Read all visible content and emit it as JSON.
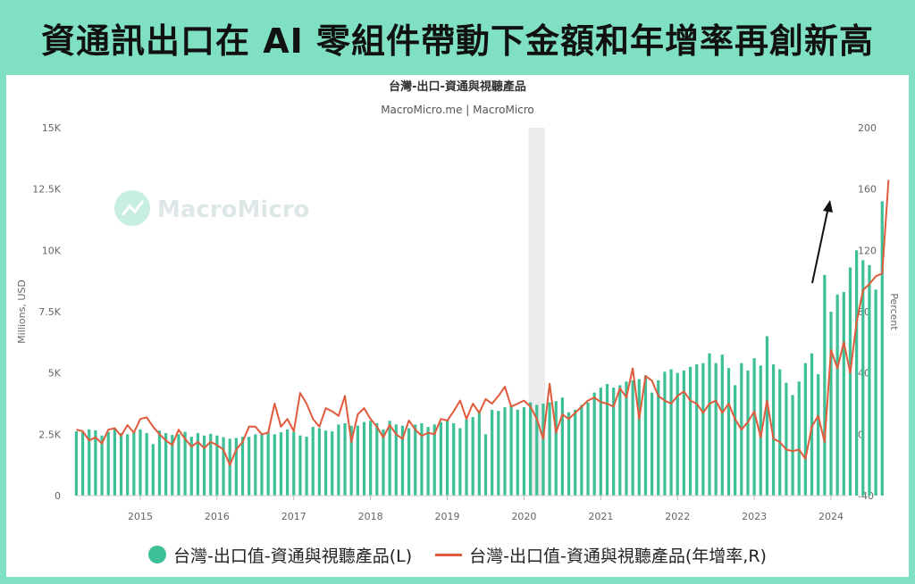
{
  "headline": "資通訊出口在 AI 零組件帶動下金額和年增率再創新高",
  "colors": {
    "background": "#7fe0c3",
    "bar": "#3dbf98",
    "line": "#e05a3c",
    "shade": "#ececec",
    "arrow": "#111111"
  },
  "chart_data": {
    "type": "bar",
    "title": "台灣-出口-資通與視聽產品",
    "subtitle": "MacroMicro.me | MacroMicro",
    "watermark": "MacroMicro",
    "ylabel_left": "Millions, USD",
    "ylabel_right": "Percent",
    "ylim_left": [
      0,
      15000
    ],
    "ylim_right": [
      -40,
      200
    ],
    "yticks_left": [
      "0",
      "2.5K",
      "5K",
      "7.5K",
      "10K",
      "12.5K",
      "15K"
    ],
    "yticks_right": [
      "-40",
      "0",
      "40",
      "80",
      "120",
      "160",
      "200"
    ],
    "xticks": [
      "2015",
      "2016",
      "2017",
      "2018",
      "2019",
      "2020",
      "2021",
      "2022",
      "2023",
      "2024"
    ],
    "start": "2014-03",
    "legend": [
      "台灣-出口值-資通與視聽產品(L)",
      "台灣-出口值-資通與視聽產品(年增率,R)"
    ],
    "series": [
      {
        "name": "台灣-出口值-資通與視聽產品(L)",
        "axis": "left",
        "type": "bar",
        "values": [
          2620,
          2580,
          2700,
          2660,
          2450,
          2600,
          2720,
          2550,
          2500,
          2600,
          2700,
          2550,
          2100,
          2650,
          2550,
          2480,
          2500,
          2600,
          2400,
          2550,
          2450,
          2520,
          2450,
          2380,
          2320,
          2350,
          2400,
          2400,
          2500,
          2520,
          2600,
          2500,
          2580,
          2700,
          2600,
          2450,
          2400,
          2800,
          2750,
          2650,
          2620,
          2900,
          2950,
          2850,
          2850,
          3000,
          3050,
          2950,
          2700,
          3050,
          2900,
          2850,
          2750,
          2900,
          2950,
          2800,
          2900,
          3000,
          3100,
          2950,
          2750,
          3100,
          3200,
          3400,
          2500,
          3500,
          3450,
          3600,
          3700,
          3500,
          3600,
          3800,
          3700,
          3750,
          3800,
          3850,
          4000,
          3400,
          3500,
          3700,
          3800,
          4200,
          4400,
          4550,
          4400,
          4500,
          4650,
          4700,
          4750,
          4900,
          4200,
          4700,
          5050,
          5150,
          5000,
          5100,
          5250,
          5350,
          5400,
          5800,
          5400,
          5750,
          5200,
          4500,
          5400,
          5100,
          5600,
          5300,
          6500,
          5350,
          5150,
          4600,
          4100,
          4650,
          5400,
          5800,
          4950,
          9000,
          7500,
          8200,
          8300,
          9300,
          10000,
          9600,
          9400,
          8400,
          12000
        ]
      },
      {
        "name": "台灣-出口值-資通與視聽產品(年增率,R)",
        "axis": "right",
        "type": "line",
        "values": [
          3,
          2,
          -4,
          -2,
          -6,
          3,
          4,
          -1,
          6,
          1,
          10,
          11,
          5,
          0,
          -4,
          -7,
          3,
          -3,
          -8,
          -5,
          -9,
          -5,
          -7,
          -10,
          -20,
          -10,
          -5,
          5,
          5,
          0,
          1,
          20,
          5,
          10,
          2,
          27,
          20,
          10,
          5,
          17,
          15,
          12,
          25,
          -5,
          13,
          17,
          10,
          5,
          -2,
          6,
          0,
          -3,
          9,
          3,
          -1,
          1,
          0,
          10,
          9,
          15,
          22,
          10,
          20,
          14,
          23,
          20,
          25,
          31,
          18,
          20,
          22,
          18,
          10,
          -3,
          33,
          1,
          13,
          10,
          14,
          18,
          22,
          24,
          21,
          20,
          18,
          30,
          24,
          43,
          10,
          38,
          35,
          25,
          22,
          20,
          25,
          28,
          22,
          20,
          14,
          20,
          22,
          14,
          20,
          10,
          3,
          8,
          15,
          -2,
          22,
          -3,
          -5,
          -10,
          -11,
          -10,
          -16,
          5,
          12,
          -5,
          55,
          43,
          60,
          40,
          73,
          94,
          98,
          103,
          105,
          166
        ]
      }
    ],
    "shaded_period": [
      "2020-02",
      "2020-04"
    ],
    "annotation": "arrow pointing up-right toward latest value"
  }
}
